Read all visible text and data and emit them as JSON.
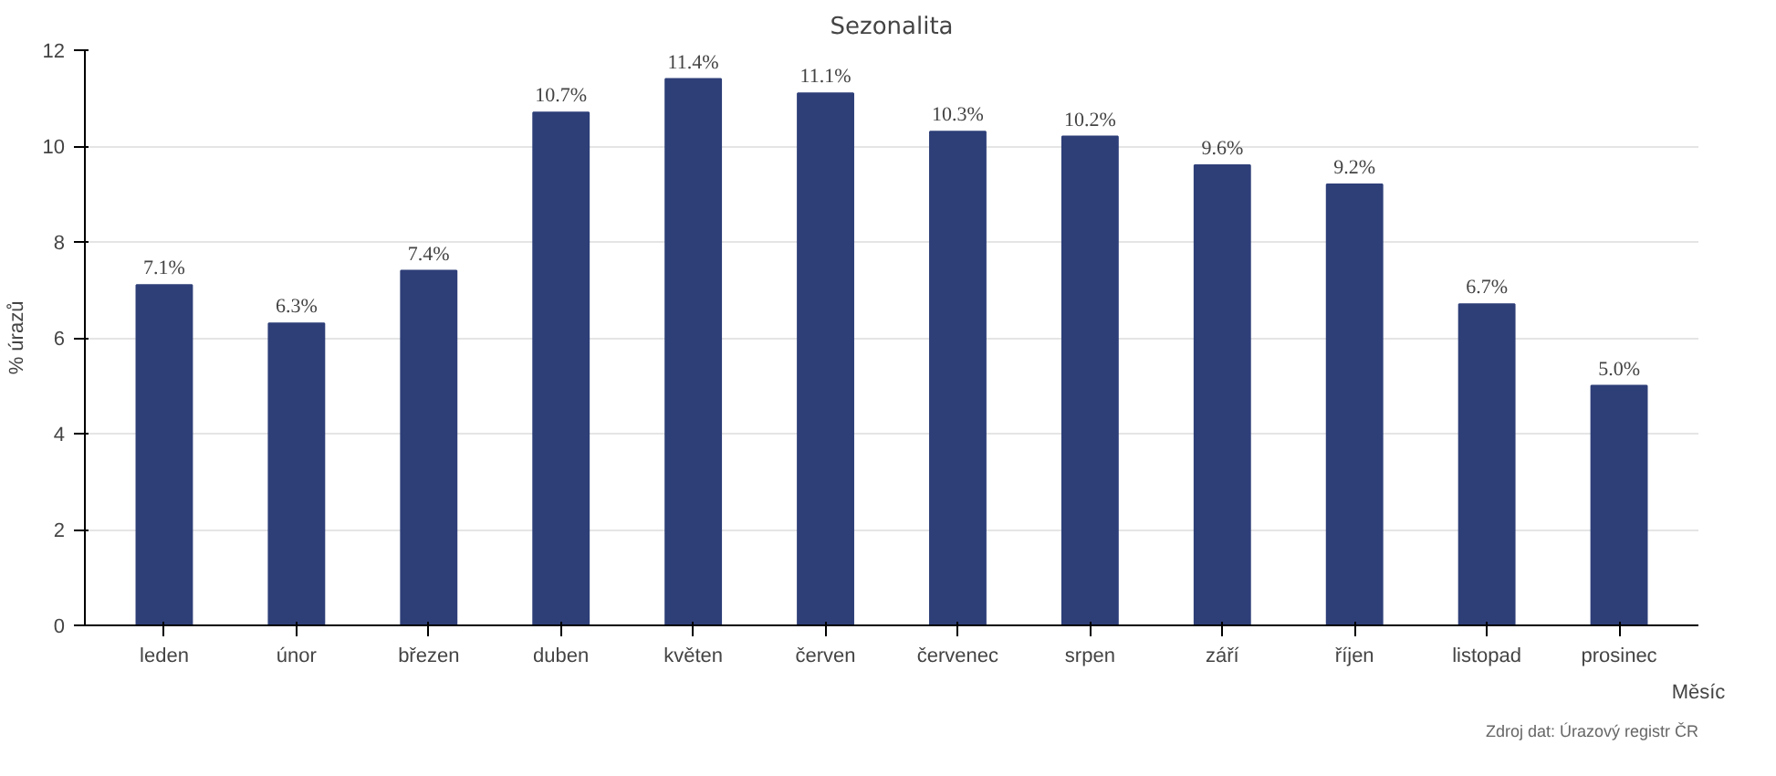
{
  "chart_data": {
    "type": "bar",
    "title": "Sezonalita",
    "xlabel": "Měsíc",
    "ylabel": "% úrazů",
    "categories": [
      "leden",
      "únor",
      "březen",
      "duben",
      "květen",
      "červen",
      "červenec",
      "srpen",
      "září",
      "říjen",
      "listopad",
      "prosinec"
    ],
    "values": [
      7.1,
      6.3,
      7.4,
      10.7,
      11.4,
      11.1,
      10.3,
      10.2,
      9.6,
      9.2,
      6.7,
      5.0
    ],
    "value_labels": [
      "7.1%",
      "6.3%",
      "7.4%",
      "10.7%",
      "11.4%",
      "11.1%",
      "10.3%",
      "10.2%",
      "9.6%",
      "9.2%",
      "6.7%",
      "5.0%"
    ],
    "color": "#2e3f78",
    "ylim": [
      0,
      12
    ],
    "yticks": [
      0,
      2,
      4,
      6,
      8,
      10,
      12
    ],
    "grid": "y",
    "annotations": [
      "Zdroj dat: Úrazový registr ČR"
    ]
  }
}
